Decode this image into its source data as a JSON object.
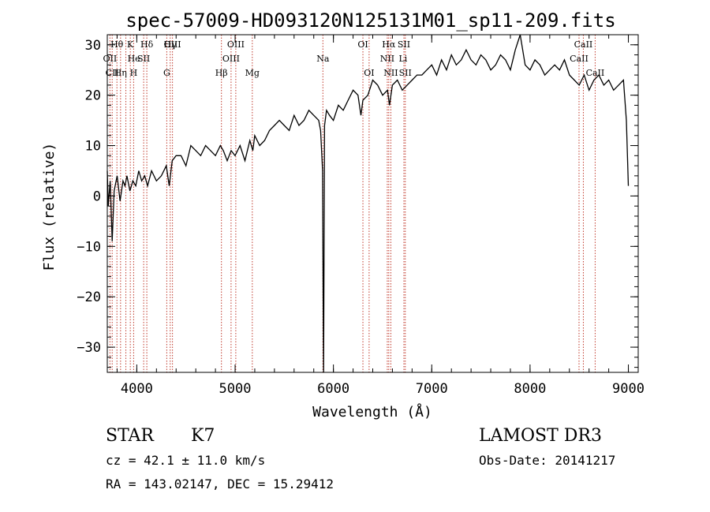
{
  "chart_data": {
    "type": "line",
    "title": "spec-57009-HD093120N125131M01_sp11-209.fits",
    "xlabel": "Wavelength (Å)",
    "ylabel": "Flux (relative)",
    "xlim": [
      3700,
      9100
    ],
    "ylim": [
      -35,
      32
    ],
    "xticks": [
      4000,
      5000,
      6000,
      7000,
      8000,
      9000
    ],
    "yticks": [
      -30,
      -20,
      -10,
      0,
      10,
      20,
      30
    ],
    "spectrum": {
      "x": [
        3700,
        3710,
        3730,
        3750,
        3770,
        3800,
        3830,
        3860,
        3880,
        3900,
        3930,
        3960,
        3990,
        4020,
        4050,
        4080,
        4110,
        4150,
        4200,
        4250,
        4300,
        4330,
        4360,
        4400,
        4450,
        4500,
        4550,
        4600,
        4650,
        4700,
        4750,
        4800,
        4850,
        4880,
        4920,
        4960,
        5000,
        5050,
        5100,
        5150,
        5180,
        5200,
        5250,
        5300,
        5350,
        5400,
        5450,
        5500,
        5550,
        5600,
        5650,
        5700,
        5750,
        5800,
        5850,
        5870,
        5890,
        5895,
        5900,
        5905,
        5910,
        5930,
        5960,
        6000,
        6050,
        6100,
        6150,
        6200,
        6250,
        6280,
        6300,
        6350,
        6400,
        6450,
        6500,
        6550,
        6570,
        6600,
        6650,
        6700,
        6750,
        6800,
        6850,
        6900,
        6950,
        7000,
        7050,
        7100,
        7150,
        7200,
        7250,
        7300,
        7350,
        7400,
        7450,
        7500,
        7550,
        7600,
        7650,
        7700,
        7750,
        7800,
        7850,
        7900,
        7950,
        8000,
        8050,
        8100,
        8150,
        8200,
        8250,
        8300,
        8350,
        8400,
        8450,
        8500,
        8550,
        8600,
        8650,
        8700,
        8750,
        8800,
        8850,
        8900,
        8950,
        8980,
        9000
      ],
      "y": [
        5,
        -2,
        3,
        -9,
        1,
        4,
        -1,
        3,
        2,
        4,
        1,
        3,
        2,
        5,
        3,
        4,
        2,
        5,
        3,
        4,
        6,
        2,
        7,
        8,
        8,
        6,
        10,
        9,
        8,
        10,
        9,
        8,
        10,
        9,
        7,
        9,
        8,
        10,
        7,
        11,
        9,
        12,
        10,
        11,
        13,
        14,
        15,
        14,
        13,
        16,
        14,
        15,
        17,
        16,
        15,
        13,
        5,
        -20,
        -35,
        -10,
        14,
        17,
        16,
        15,
        18,
        17,
        19,
        21,
        20,
        16,
        19,
        20,
        23,
        22,
        20,
        21,
        18,
        22,
        23,
        21,
        22,
        23,
        24,
        24,
        25,
        26,
        24,
        27,
        25,
        28,
        26,
        27,
        29,
        27,
        26,
        28,
        27,
        25,
        26,
        28,
        27,
        25,
        29,
        32,
        26,
        25,
        27,
        26,
        24,
        25,
        26,
        25,
        27,
        24,
        23,
        22,
        24,
        21,
        23,
        24,
        22,
        23,
        21,
        22,
        23,
        15,
        2
      ]
    },
    "line_labels": [
      {
        "text": "Hθ",
        "wavelength": 3798
      },
      {
        "text": "K",
        "wavelength": 3934
      },
      {
        "text": "Hδ",
        "wavelength": 4102
      },
      {
        "text": "OII",
        "wavelength": 3727
      },
      {
        "text": "He",
        "wavelength": 3970
      },
      {
        "text": "SII",
        "wavelength": 4070
      },
      {
        "text": "CII",
        "wavelength": 3750
      },
      {
        "text": "Hη",
        "wavelength": 3835
      },
      {
        "text": "H",
        "wavelength": 3968
      },
      {
        "text": "OIII",
        "wavelength": 4363
      },
      {
        "text": "Hγ",
        "wavelength": 4340
      },
      {
        "text": "G",
        "wavelength": 4305
      },
      {
        "text": "OIII",
        "wavelength": 5007
      },
      {
        "text": "OIII",
        "wavelength": 4959
      },
      {
        "text": "Hβ",
        "wavelength": 4861
      },
      {
        "text": "Mg",
        "wavelength": 5175
      },
      {
        "text": "Na",
        "wavelength": 5893
      },
      {
        "text": "OI",
        "wavelength": 6300
      },
      {
        "text": "OI",
        "wavelength": 6363
      },
      {
        "text": "Hα",
        "wavelength": 6563
      },
      {
        "text": "SII",
        "wavelength": 6717
      },
      {
        "text": "NII",
        "wavelength": 6548
      },
      {
        "text": "Li",
        "wavelength": 6708
      },
      {
        "text": "NII",
        "wavelength": 6584
      },
      {
        "text": "SII",
        "wavelength": 6731
      },
      {
        "text": "CaII",
        "wavelength": 8542
      },
      {
        "text": "CaII",
        "wavelength": 8498
      },
      {
        "text": "CaII",
        "wavelength": 8662
      }
    ],
    "line_wavelengths": [
      3727,
      3750,
      3798,
      3835,
      3889,
      3934,
      3968,
      4070,
      4102,
      4305,
      4340,
      4363,
      4861,
      4959,
      5007,
      5175,
      5893,
      6300,
      6363,
      6548,
      6563,
      6584,
      6717,
      6731,
      8498,
      8542,
      8662
    ]
  },
  "info": {
    "object_class": "STAR",
    "subclass": "K7",
    "survey": "LAMOST DR3",
    "cz": "cz = 42.1 ± 11.0 km/s",
    "obs_date": "Obs-Date: 20141217",
    "coords": "RA = 143.02147, DEC =  15.29412"
  }
}
